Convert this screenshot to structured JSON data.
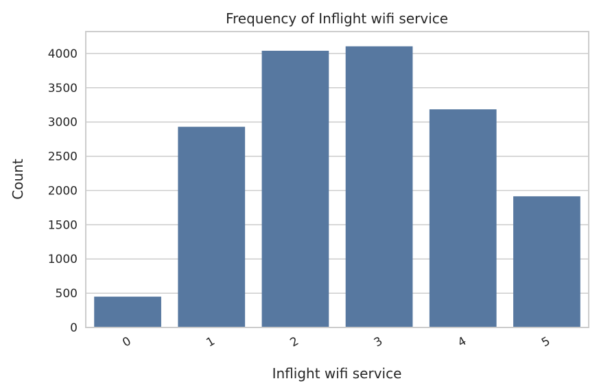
{
  "chart_data": {
    "type": "bar",
    "title": "Frequency of Inflight wifi service",
    "xlabel": "Inflight wifi service",
    "ylabel": "Count",
    "categories": [
      "0",
      "1",
      "2",
      "3",
      "4",
      "5"
    ],
    "values": [
      450,
      2930,
      4040,
      4105,
      3185,
      1915
    ],
    "ylim": [
      0,
      4320
    ],
    "yticks": [
      0,
      500,
      1000,
      1500,
      2000,
      2500,
      3000,
      3500,
      4000
    ],
    "grid": true,
    "bar_color": "#5778a0",
    "grid_color": "#cccccc"
  }
}
